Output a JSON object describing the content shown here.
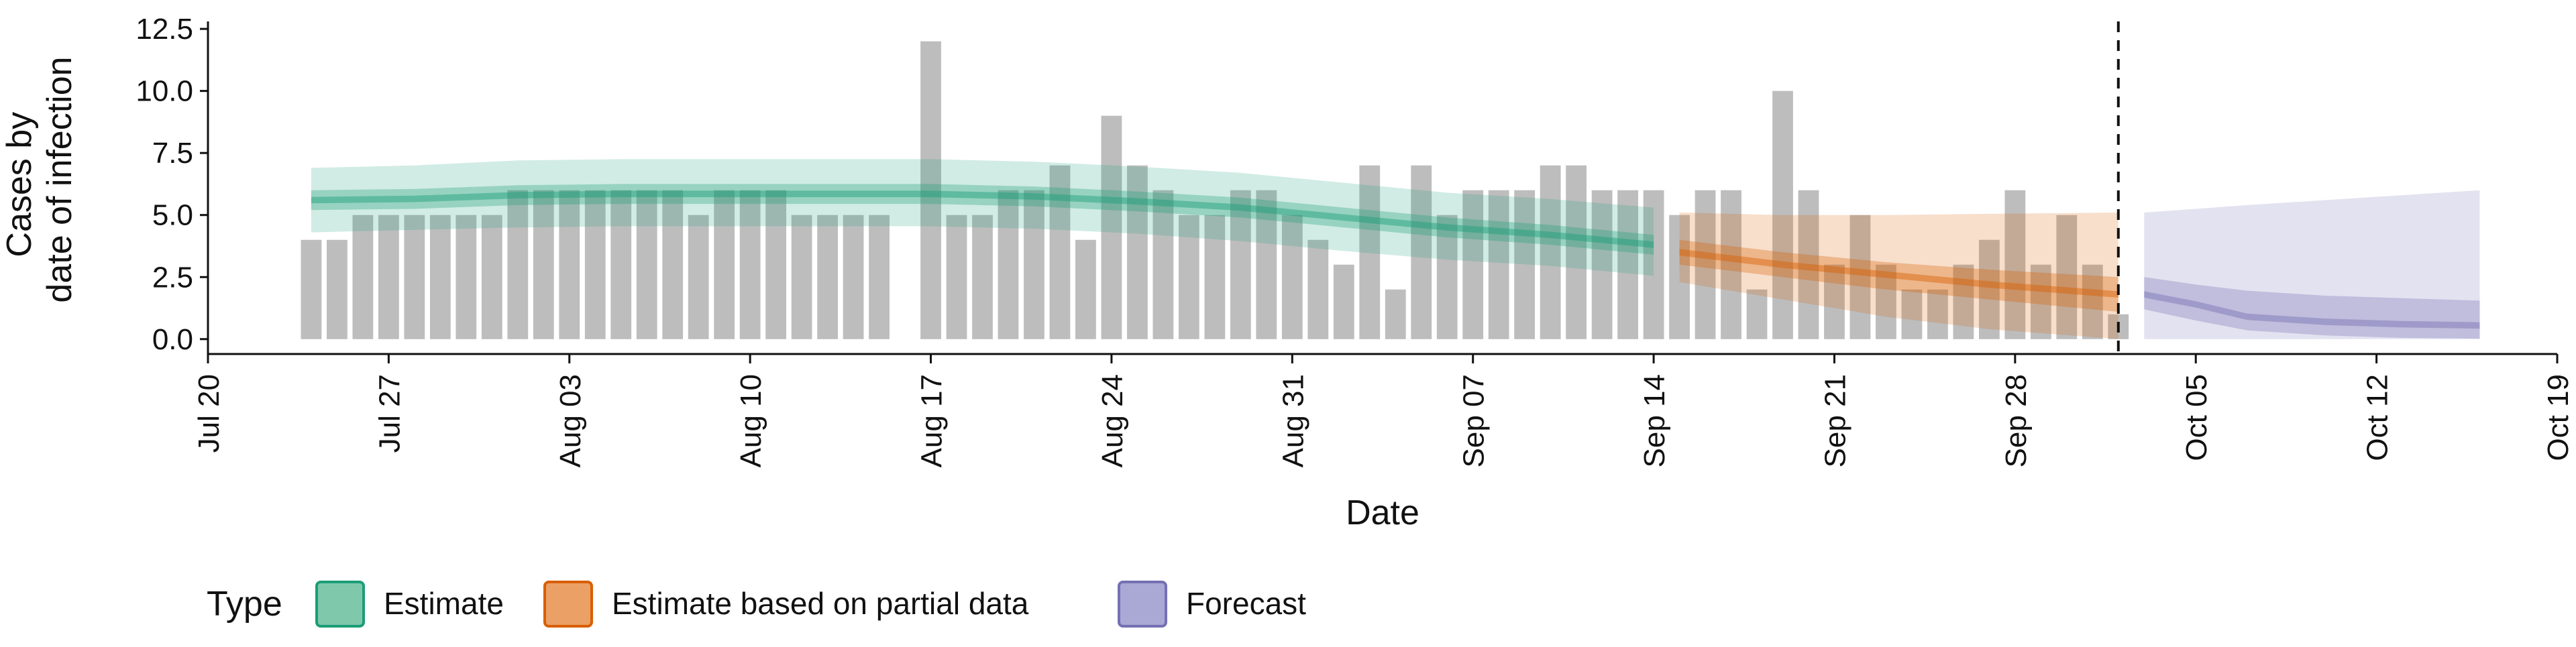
{
  "chart_data": {
    "type": "bar",
    "title": "",
    "xlabel": "Date",
    "ylabel": [
      "Cases by",
      "date of infection"
    ],
    "ylim": [
      -0.6,
      12.8
    ],
    "yticks": [
      0.0,
      2.5,
      5.0,
      7.5,
      10.0,
      12.5
    ],
    "ytick_labels": [
      "0.0",
      "2.5",
      "5.0",
      "7.5",
      "10.0",
      "12.5"
    ],
    "xlim": [
      "2020-07-20",
      "2020-10-19"
    ],
    "xticks": [
      "2020-07-20",
      "2020-07-27",
      "2020-08-03",
      "2020-08-10",
      "2020-08-17",
      "2020-08-24",
      "2020-08-31",
      "2020-09-07",
      "2020-09-14",
      "2020-09-21",
      "2020-09-28",
      "2020-10-05",
      "2020-10-12",
      "2020-10-19"
    ],
    "xtick_labels": [
      "Jul 20",
      "Jul 27",
      "Aug 03",
      "Aug 10",
      "Aug 17",
      "Aug 24",
      "Aug 31",
      "Sep 07",
      "Sep 14",
      "Sep 21",
      "Sep 28",
      "Oct 05",
      "Oct 12",
      "Oct 19"
    ],
    "grid": false,
    "forecast_date": "2020-10-02",
    "bars": {
      "color": "#bdbdbd",
      "dates": [
        "2020-07-24",
        "2020-07-25",
        "2020-07-26",
        "2020-07-27",
        "2020-07-28",
        "2020-07-29",
        "2020-07-30",
        "2020-07-31",
        "2020-08-01",
        "2020-08-02",
        "2020-08-03",
        "2020-08-04",
        "2020-08-05",
        "2020-08-06",
        "2020-08-07",
        "2020-08-08",
        "2020-08-09",
        "2020-08-10",
        "2020-08-11",
        "2020-08-12",
        "2020-08-13",
        "2020-08-14",
        "2020-08-15",
        "2020-08-16",
        "2020-08-17",
        "2020-08-18",
        "2020-08-19",
        "2020-08-20",
        "2020-08-21",
        "2020-08-22",
        "2020-08-23",
        "2020-08-24",
        "2020-08-25",
        "2020-08-26",
        "2020-08-27",
        "2020-08-28",
        "2020-08-29",
        "2020-08-30",
        "2020-08-31",
        "2020-09-01",
        "2020-09-02",
        "2020-09-03",
        "2020-09-04",
        "2020-09-05",
        "2020-09-06",
        "2020-09-07",
        "2020-09-08",
        "2020-09-09",
        "2020-09-10",
        "2020-09-11",
        "2020-09-12",
        "2020-09-13",
        "2020-09-14",
        "2020-09-15",
        "2020-09-16",
        "2020-09-17",
        "2020-09-18",
        "2020-09-19",
        "2020-09-20",
        "2020-09-21",
        "2020-09-22",
        "2020-09-23",
        "2020-09-24",
        "2020-09-25",
        "2020-09-26",
        "2020-09-27",
        "2020-09-28",
        "2020-09-29",
        "2020-09-30",
        "2020-10-01",
        "2020-10-02"
      ],
      "values": [
        4,
        4,
        5,
        5,
        5,
        5,
        5,
        5,
        6,
        6,
        6,
        6,
        6,
        6,
        6,
        5,
        6,
        6,
        6,
        5,
        5,
        5,
        5,
        0,
        12,
        5,
        5,
        6,
        6,
        7,
        4,
        9,
        7,
        6,
        5,
        5,
        6,
        6,
        5,
        4,
        3,
        7,
        2,
        7,
        5,
        6,
        6,
        6,
        7,
        7,
        6,
        6,
        6,
        5,
        6,
        6,
        2,
        10,
        6,
        3,
        5,
        3,
        2,
        2,
        3,
        4,
        6,
        3,
        5,
        3,
        1
      ]
    },
    "series": [
      {
        "name": "Estimate",
        "color": "#1b9e77",
        "dates": [
          "2020-07-24",
          "2020-07-28",
          "2020-08-01",
          "2020-08-05",
          "2020-08-09",
          "2020-08-13",
          "2020-08-17",
          "2020-08-21",
          "2020-08-25",
          "2020-08-29",
          "2020-09-02",
          "2020-09-06",
          "2020-09-10",
          "2020-09-14"
        ],
        "median": [
          5.6,
          5.65,
          5.8,
          5.85,
          5.85,
          5.85,
          5.85,
          5.75,
          5.55,
          5.3,
          4.9,
          4.5,
          4.2,
          3.8
        ],
        "inner": [
          [
            5.2,
            6.0
          ],
          [
            5.25,
            6.05
          ],
          [
            5.4,
            6.2
          ],
          [
            5.45,
            6.25
          ],
          [
            5.45,
            6.25
          ],
          [
            5.45,
            6.25
          ],
          [
            5.45,
            6.25
          ],
          [
            5.35,
            6.15
          ],
          [
            5.15,
            5.95
          ],
          [
            4.9,
            5.7
          ],
          [
            4.5,
            5.3
          ],
          [
            4.1,
            4.9
          ],
          [
            3.8,
            4.6
          ],
          [
            3.4,
            4.2
          ]
        ],
        "outer": [
          [
            4.3,
            6.9
          ],
          [
            4.4,
            7.0
          ],
          [
            4.5,
            7.2
          ],
          [
            4.55,
            7.25
          ],
          [
            4.55,
            7.25
          ],
          [
            4.55,
            7.25
          ],
          [
            4.55,
            7.25
          ],
          [
            4.45,
            7.15
          ],
          [
            4.25,
            6.95
          ],
          [
            3.95,
            6.7
          ],
          [
            3.55,
            6.3
          ],
          [
            3.2,
            5.9
          ],
          [
            2.95,
            5.65
          ],
          [
            2.55,
            5.3
          ]
        ]
      },
      {
        "name": "Estimate based on partial data",
        "color": "#d95f02",
        "dates": [
          "2020-09-15",
          "2020-09-19",
          "2020-09-23",
          "2020-09-27",
          "2020-10-02"
        ],
        "median": [
          3.5,
          3.0,
          2.6,
          2.2,
          1.8
        ],
        "inner": [
          [
            3.0,
            4.0
          ],
          [
            2.5,
            3.5
          ],
          [
            2.0,
            3.1
          ],
          [
            1.6,
            2.8
          ],
          [
            1.1,
            2.5
          ]
        ],
        "outer": [
          [
            2.3,
            5.1
          ],
          [
            1.6,
            5.0
          ],
          [
            0.9,
            5.0
          ],
          [
            0.4,
            5.05
          ],
          [
            0.0,
            5.1
          ]
        ]
      },
      {
        "name": "Forecast",
        "color": "#7570b3",
        "dates": [
          "2020-10-03",
          "2020-10-05",
          "2020-10-07",
          "2020-10-10",
          "2020-10-13",
          "2020-10-16"
        ],
        "median": [
          1.8,
          1.4,
          0.9,
          0.7,
          0.6,
          0.55
        ],
        "inner": [
          [
            1.2,
            2.5
          ],
          [
            0.75,
            2.2
          ],
          [
            0.35,
            1.95
          ],
          [
            0.15,
            1.75
          ],
          [
            0.05,
            1.65
          ],
          [
            0.02,
            1.55
          ]
        ],
        "outer": [
          [
            0.0,
            5.1
          ],
          [
            0.0,
            5.25
          ],
          [
            0.0,
            5.4
          ],
          [
            0.0,
            5.6
          ],
          [
            0.0,
            5.8
          ],
          [
            0.0,
            6.0
          ]
        ]
      }
    ],
    "legend": {
      "title": "Type",
      "position": "bottom",
      "items": [
        {
          "label": "Estimate",
          "fill": "#7fc8ac",
          "border": "#1b9e77"
        },
        {
          "label": "Estimate based on partial data",
          "fill": "#eba066",
          "border": "#d95f02"
        },
        {
          "label": "Forecast",
          "fill": "#aaa8d4",
          "border": "#7570b3"
        }
      ]
    }
  }
}
